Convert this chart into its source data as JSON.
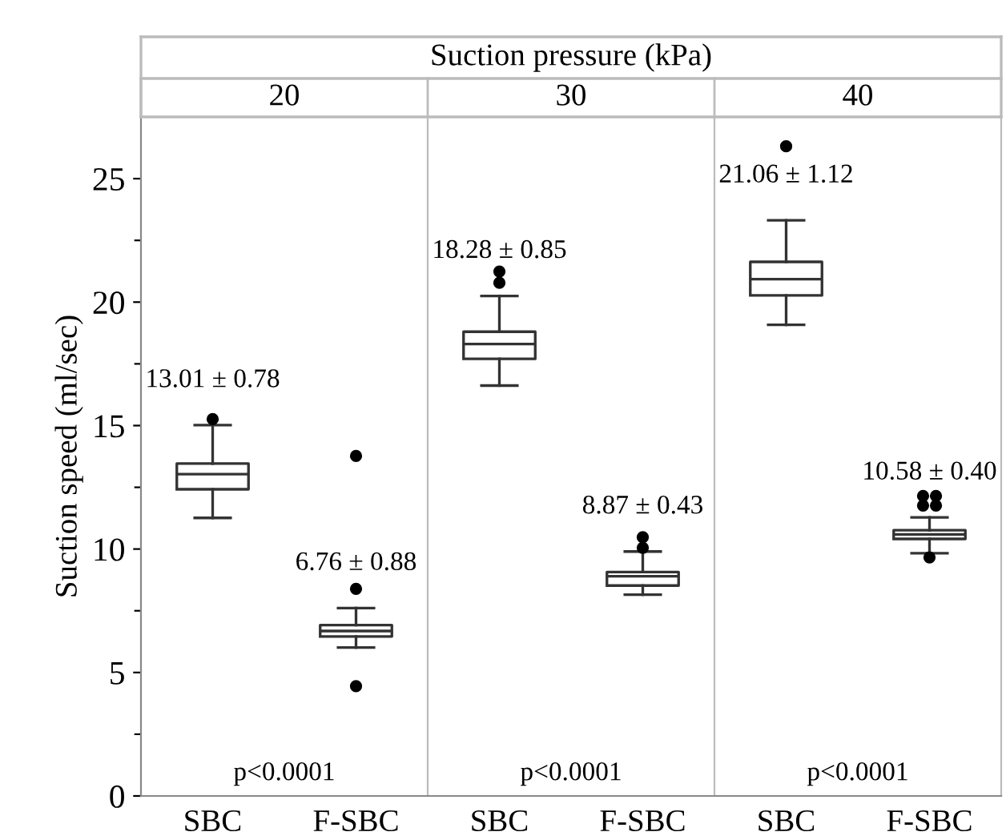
{
  "chart_data": [
    {
      "type": "box",
      "subtitle": "20",
      "ylabel": "Suction speed (ml/sec)",
      "categories": [
        "SBC",
        "F-SBC"
      ],
      "boxes": [
        {
          "low": 11.26,
          "q1": 12.42,
          "median": 13.03,
          "q3": 13.46,
          "high": 15.02,
          "outliers": [
            15.26
          ]
        },
        {
          "low": 6.01,
          "q1": 6.46,
          "median": 6.68,
          "q3": 6.92,
          "high": 7.61,
          "outliers": [
            13.77,
            8.39,
            4.45
          ]
        }
      ],
      "annotations": [
        "13.01 ± 0.78",
        "6.76 ± 0.88",
        "p<0.0001"
      ],
      "ylim": [
        0,
        27.5
      ],
      "yticks": [
        0,
        {
          "value": 2.5,
          "label": null
        },
        5,
        {
          "value": 7.5,
          "label": null
        },
        10,
        {
          "value": 12.5,
          "label": null
        },
        15,
        {
          "value": 17.5,
          "label": null
        },
        20,
        {
          "value": 22.5,
          "label": null
        },
        25
      ],
      "grid": false
    },
    {
      "type": "box",
      "title": "Suction pressure (kPa)",
      "subtitle": "30",
      "categories": [
        "SBC",
        "F-SBC"
      ],
      "boxes": [
        {
          "low": 16.62,
          "q1": 17.7,
          "median": 18.3,
          "q3": 18.8,
          "high": 20.25,
          "outliers": [
            21.24,
            20.78
          ]
        },
        {
          "low": 8.15,
          "q1": 8.52,
          "median": 8.9,
          "q3": 9.07,
          "high": 9.9,
          "outliers": [
            10.48,
            10.05
          ]
        }
      ],
      "annotations": [
        "18.28 ± 0.85",
        "8.87 ± 0.43",
        "p<0.0001"
      ],
      "ylim": [
        0,
        27.5
      ],
      "tick_labels": "x",
      "grid": false
    },
    {
      "type": "box",
      "subtitle": "40",
      "categories": [
        "SBC",
        "F-SBC"
      ],
      "boxes": [
        {
          "low": 19.08,
          "q1": 20.27,
          "median": 20.93,
          "q3": 21.63,
          "high": 23.31,
          "outliers": [
            26.31
          ]
        },
        {
          "low": 9.83,
          "q1": 10.41,
          "median": 10.59,
          "q3": 10.76,
          "high": 11.28,
          "outliers": [
            12.15,
            12.15,
            11.76,
            11.76,
            9.66
          ]
        }
      ],
      "annotations": [
        "21.06 ± 1.12",
        "10.58 ± 0.40",
        "p<0.0001"
      ],
      "ylim": [
        0,
        27.5
      ],
      "tick_labels": "x",
      "grid": false
    }
  ]
}
